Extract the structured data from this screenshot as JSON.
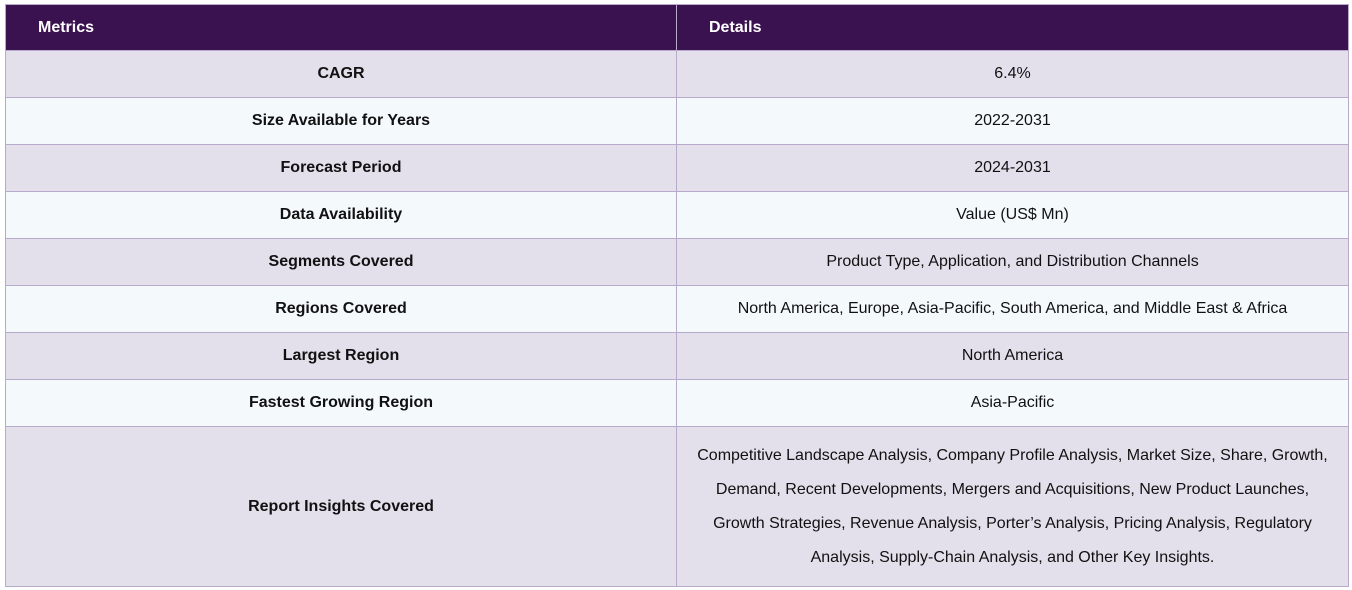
{
  "table": {
    "headers": {
      "metrics": "Metrics",
      "details": "Details"
    },
    "rows": [
      {
        "metric": "CAGR",
        "detail": "6.4%"
      },
      {
        "metric": "Size Available for Years",
        "detail": "2022-2031"
      },
      {
        "metric": "Forecast Period",
        "detail": "2024-2031"
      },
      {
        "metric": "Data Availability",
        "detail": "Value (US$ Mn)"
      },
      {
        "metric": "Segments Covered",
        "detail": "Product Type, Application, and Distribution Channels"
      },
      {
        "metric": "Regions Covered",
        "detail": "North America, Europe, Asia-Pacific, South America, and Middle East & Africa"
      },
      {
        "metric": "Largest Region",
        "detail": "North America"
      },
      {
        "metric": "Fastest Growing Region",
        "detail": "Asia-Pacific"
      },
      {
        "metric": "Report Insights Covered",
        "detail": "Competitive Landscape Analysis, Company Profile Analysis, Market Size, Share, Growth, Demand, Recent Developments, Mergers and Acquisitions, New Product Launches, Growth Strategies, Revenue Analysis, Porter’s Analysis, Pricing Analysis, Regulatory Analysis, Supply-Chain Analysis, and Other Key Insights."
      }
    ]
  },
  "colors": {
    "header_bg": "#3b1250",
    "row_odd_bg": "#e3dfeb",
    "row_even_bg": "#f4f9fc",
    "border": "#b7aacb"
  }
}
